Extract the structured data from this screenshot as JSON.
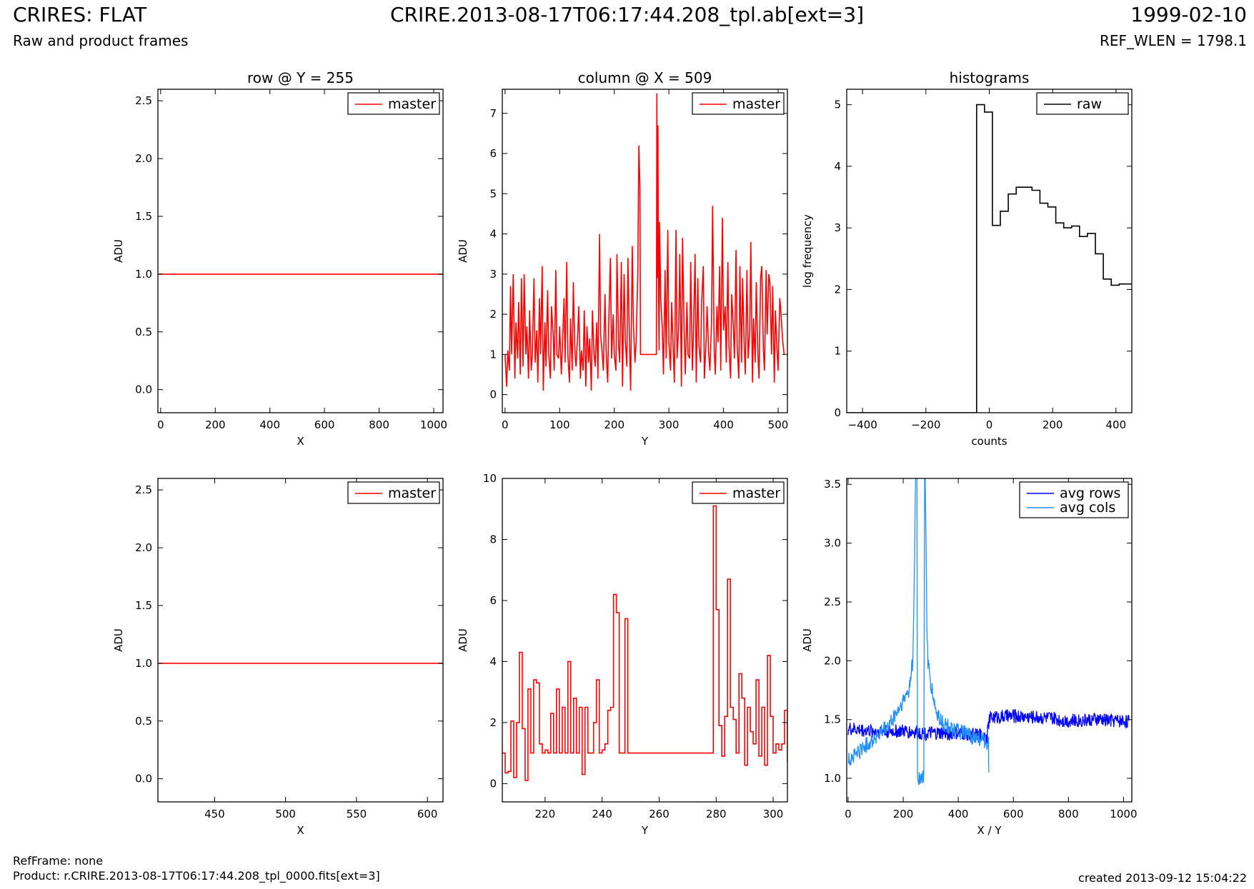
{
  "header": {
    "title_left": "CRIRES: FLAT",
    "title_center": "CRIRE.2013-08-17T06:17:44.208_tpl.ab[ext=3]",
    "title_right": "1999-02-10",
    "subtitle_left": "Raw and product frames",
    "subtitle_right": "REF_WLEN = 1798.1"
  },
  "footer": {
    "refframe": "RefFrame: none",
    "product": "Product: r.CRIRE.2013-08-17T06:17:44.208_tpl_0000.fits[ext=3]",
    "created": "created 2013-09-12 15:04:22"
  },
  "colors": {
    "master": "#ff0000",
    "raw": "#000000",
    "avg_rows": "#0000ff",
    "avg_cols": "#1e90ff"
  },
  "chart_data": [
    {
      "type": "line",
      "title": "row @ Y = 255",
      "xlabel": "X",
      "ylabel": "ADU",
      "xlim": [
        -10,
        1034
      ],
      "ylim": [
        -0.2,
        2.6
      ],
      "xticks": [
        0,
        200,
        400,
        600,
        800,
        1000
      ],
      "xtick_labels": [
        "0",
        "200",
        "400",
        "600",
        "800",
        "1000"
      ],
      "yticks": [
        0.0,
        0.5,
        1.0,
        1.5,
        2.0,
        2.5
      ],
      "ytick_labels": [
        "0.0",
        "0.5",
        "1.0",
        "1.5",
        "2.0",
        "2.5"
      ],
      "legend": "top-right",
      "series": [
        {
          "name": "master",
          "color": "#ff0000",
          "step": false,
          "x": [
            -10,
            1034
          ],
          "y": [
            1.0,
            1.0
          ]
        }
      ]
    },
    {
      "type": "line",
      "title": "column @ X = 509",
      "xlabel": "Y",
      "ylabel": "ADU",
      "xlim": [
        -5,
        517
      ],
      "ylim": [
        -0.45,
        7.6
      ],
      "xticks": [
        0,
        100,
        200,
        300,
        400,
        500
      ],
      "xtick_labels": [
        "0",
        "100",
        "200",
        "300",
        "400",
        "500"
      ],
      "yticks": [
        0,
        1,
        2,
        3,
        4,
        5,
        6,
        7
      ],
      "ytick_labels": [
        "0",
        "1",
        "2",
        "3",
        "4",
        "5",
        "6",
        "7"
      ],
      "legend": "top-right",
      "series": [
        {
          "name": "master",
          "color": "#ff0000",
          "step": false,
          "x": [
            0,
            3,
            5,
            8,
            10,
            12,
            15,
            18,
            20,
            23,
            25,
            28,
            30,
            33,
            35,
            38,
            40,
            43,
            45,
            48,
            50,
            53,
            55,
            58,
            60,
            63,
            65,
            68,
            70,
            73,
            75,
            78,
            80,
            83,
            85,
            88,
            90,
            93,
            95,
            98,
            100,
            103,
            105,
            108,
            110,
            113,
            115,
            118,
            120,
            123,
            125,
            128,
            130,
            133,
            135,
            138,
            140,
            143,
            145,
            148,
            150,
            153,
            155,
            158,
            160,
            163,
            165,
            168,
            170,
            173,
            175,
            178,
            180,
            183,
            185,
            188,
            190,
            193,
            195,
            198,
            200,
            203,
            205,
            208,
            210,
            213,
            215,
            218,
            220,
            223,
            225,
            228,
            230,
            233,
            235,
            238,
            240,
            243,
            245,
            247,
            248,
            250,
            252,
            255,
            260,
            265,
            270,
            275,
            277,
            278,
            279,
            280,
            281,
            282,
            283,
            285,
            288,
            290,
            293,
            295,
            298,
            300,
            303,
            305,
            308,
            310,
            313,
            315,
            318,
            320,
            323,
            325,
            328,
            330,
            333,
            335,
            338,
            340,
            343,
            345,
            348,
            350,
            353,
            355,
            358,
            360,
            363,
            365,
            368,
            370,
            373,
            375,
            378,
            380,
            383,
            385,
            388,
            390,
            393,
            395,
            398,
            400,
            403,
            405,
            408,
            410,
            413,
            415,
            418,
            420,
            423,
            425,
            428,
            430,
            433,
            435,
            438,
            440,
            443,
            445,
            448,
            450,
            453,
            455,
            458,
            460,
            463,
            465,
            468,
            470,
            473,
            475,
            478,
            480,
            483,
            485,
            488,
            490,
            493,
            495,
            498,
            500,
            503,
            505,
            508,
            511
          ],
          "y": [
            1.0,
            0.2,
            1.1,
            0.6,
            2.7,
            1.0,
            3.0,
            0.4,
            1.8,
            0.9,
            2.3,
            0.5,
            2.9,
            0.7,
            3.0,
            1.0,
            1.7,
            0.4,
            2.1,
            0.6,
            1.0,
            2.9,
            0.8,
            1.6,
            0.3,
            2.4,
            1.0,
            3.2,
            0.1,
            1.8,
            0.7,
            2.6,
            1.0,
            0.4,
            2.2,
            1.5,
            0.6,
            3.1,
            1.0,
            0.9,
            1.7,
            0.5,
            1.2,
            2.4,
            0.8,
            3.3,
            1.0,
            0.3,
            1.9,
            0.6,
            2.8,
            1.0,
            0.7,
            1.5,
            2.2,
            0.4,
            1.1,
            0.6,
            2.1,
            0.2,
            1.7,
            0.8,
            1.4,
            0.1,
            2.1,
            1.0,
            0.7,
            1.8,
            0.4,
            4.0,
            1.5,
            1.0,
            0.6,
            2.5,
            1.1,
            0.3,
            1.9,
            3.4,
            0.9,
            2.0,
            1.0,
            0.6,
            3.5,
            1.2,
            0.8,
            3.3,
            0.2,
            3.0,
            1.4,
            0.7,
            3.4,
            1.2,
            0.1,
            3.7,
            1.8,
            0.8,
            1.3,
            3.0,
            6.2,
            5.2,
            1.0,
            1.0,
            1.0,
            1.0,
            1.0,
            1.0,
            1.0,
            1.0,
            1.0,
            7.5,
            2.9,
            6.7,
            2.6,
            1.1,
            4.3,
            2.4,
            1.6,
            0.5,
            3.1,
            0.9,
            4.1,
            1.3,
            0.6,
            2.3,
            1.1,
            0.3,
            4.1,
            0.9,
            1.7,
            3.5,
            0.2,
            3.9,
            1.6,
            0.5,
            2.3,
            1.0,
            0.9,
            3.3,
            0.6,
            1.5,
            3.5,
            0.3,
            2.9,
            1.2,
            0.8,
            2.3,
            3.2,
            0.4,
            1.3,
            2.2,
            1.0,
            0.6,
            1.8,
            4.7,
            1.1,
            0.5,
            2.2,
            1.3,
            3.2,
            0.6,
            4.4,
            1.6,
            2.2,
            0.8,
            3.3,
            1.2,
            0.4,
            2.5,
            1.7,
            0.9,
            3.6,
            1.2,
            0.4,
            3.2,
            0.8,
            2.9,
            1.2,
            0.5,
            3.1,
            0.9,
            1.6,
            3.8,
            0.3,
            1.9,
            0.8,
            2.8,
            1.0,
            0.4,
            2.9,
            3.2,
            1.1,
            0.6,
            3.1,
            1.5,
            3.0,
            2.8,
            1.0,
            2.7,
            0.3,
            2.1,
            1.1,
            0.6,
            2.4,
            2.1,
            1.4,
            1.0
          ]
        }
      ]
    },
    {
      "type": "line",
      "title": "histograms",
      "xlabel": "counts",
      "ylabel": "log frequency",
      "xlim": [
        -450,
        450
      ],
      "ylim": [
        0,
        5.25
      ],
      "xticks": [
        -400,
        -200,
        0,
        200,
        400
      ],
      "xtick_labels": [
        "−400",
        "−200",
        "0",
        "200",
        "400"
      ],
      "yticks": [
        0,
        1,
        2,
        3,
        4,
        5
      ],
      "ytick_labels": [
        "0",
        "1",
        "2",
        "3",
        "4",
        "5"
      ],
      "legend": "top-right",
      "series": [
        {
          "name": "raw",
          "color": "#000000",
          "step": true,
          "x": [
            -450,
            -40,
            -40,
            -15,
            -15,
            10,
            10,
            35,
            35,
            60,
            60,
            85,
            85,
            110,
            110,
            135,
            135,
            160,
            160,
            185,
            185,
            210,
            210,
            235,
            235,
            260,
            260,
            285,
            285,
            310,
            310,
            335,
            335,
            360,
            360,
            385,
            385,
            410,
            410,
            450
          ],
          "y": [
            0,
            0,
            5.0,
            5.0,
            4.88,
            4.88,
            3.04,
            3.04,
            3.27,
            3.27,
            3.55,
            3.55,
            3.66,
            3.66,
            3.66,
            3.66,
            3.61,
            3.61,
            3.4,
            3.4,
            3.34,
            3.34,
            3.08,
            3.08,
            3.0,
            3.0,
            3.03,
            3.03,
            2.86,
            2.86,
            2.91,
            2.91,
            2.58,
            2.58,
            2.17,
            2.17,
            2.07,
            2.07,
            2.09,
            2.09
          ]
        }
      ]
    },
    {
      "type": "line",
      "title": "",
      "xlabel": "X",
      "ylabel": "ADU",
      "xlim": [
        410,
        611
      ],
      "ylim": [
        -0.2,
        2.6
      ],
      "xticks": [
        450,
        500,
        550,
        600
      ],
      "xtick_labels": [
        "450",
        "500",
        "550",
        "600"
      ],
      "yticks": [
        0.0,
        0.5,
        1.0,
        1.5,
        2.0,
        2.5
      ],
      "ytick_labels": [
        "0.0",
        "0.5",
        "1.0",
        "1.5",
        "2.0",
        "2.5"
      ],
      "legend": "top-right",
      "series": [
        {
          "name": "master",
          "color": "#ff0000",
          "step": false,
          "x": [
            410,
            611
          ],
          "y": [
            1.0,
            1.0
          ]
        }
      ]
    },
    {
      "type": "line",
      "title": "",
      "xlabel": "Y",
      "ylabel": "ADU",
      "xlim": [
        205,
        305
      ],
      "ylim": [
        -0.6,
        10.0
      ],
      "xticks": [
        220,
        240,
        260,
        280,
        300
      ],
      "xtick_labels": [
        "220",
        "240",
        "260",
        "280",
        "300"
      ],
      "yticks": [
        0,
        2,
        4,
        6,
        8,
        10
      ],
      "ytick_labels": [
        "0",
        "2",
        "4",
        "6",
        "8",
        "10"
      ],
      "legend": "top-right",
      "series": [
        {
          "name": "master",
          "color": "#ff0000",
          "step": true,
          "x": [
            205,
            206,
            207,
            208,
            209,
            210,
            211,
            212,
            213,
            214,
            215,
            216,
            217,
            218,
            219,
            220,
            221,
            222,
            223,
            224,
            225,
            226,
            227,
            228,
            229,
            230,
            231,
            232,
            233,
            234,
            235,
            236,
            237,
            238,
            239,
            240,
            241,
            242,
            243,
            244,
            245,
            246,
            247,
            248,
            249,
            278,
            279,
            280,
            281,
            282,
            283,
            284,
            285,
            286,
            287,
            288,
            289,
            290,
            291,
            292,
            293,
            294,
            295,
            296,
            297,
            298,
            299,
            300,
            301,
            302,
            303,
            304,
            305
          ],
          "y": [
            1.0,
            0.35,
            0.4,
            2.05,
            0.2,
            2.0,
            4.3,
            1.8,
            0.1,
            3.1,
            1.0,
            3.4,
            3.3,
            1.3,
            1.0,
            1.1,
            1.0,
            2.3,
            1.0,
            3.1,
            1.0,
            2.5,
            1.0,
            4.0,
            1.0,
            2.8,
            1.0,
            2.5,
            0.3,
            2.5,
            1.0,
            1.0,
            2.0,
            3.4,
            1.0,
            1.1,
            1.3,
            2.4,
            2.5,
            6.2,
            5.6,
            1.0,
            1.0,
            5.4,
            1.0,
            1.0,
            9.1,
            5.7,
            1.9,
            0.9,
            2.2,
            6.7,
            2.5,
            2.1,
            1.0,
            3.6,
            2.8,
            0.6,
            2.5,
            1.7,
            1.3,
            3.4,
            0.9,
            2.5,
            0.6,
            4.2,
            2.2,
            1.0,
            1.3,
            1.1,
            1.3,
            2.4,
            0.7
          ]
        }
      ]
    },
    {
      "type": "line",
      "title": "",
      "xlabel": "X / Y",
      "ylabel": "ADU",
      "xlim": [
        -5,
        1030
      ],
      "ylim": [
        0.8,
        3.55
      ],
      "xticks": [
        0,
        200,
        400,
        600,
        800,
        1000
      ],
      "xtick_labels": [
        "0",
        "200",
        "400",
        "600",
        "800",
        "1000"
      ],
      "yticks": [
        1.0,
        1.5,
        2.0,
        2.5,
        3.0,
        3.5
      ],
      "ytick_labels": [
        "1.0",
        "1.5",
        "2.0",
        "2.5",
        "3.0",
        "3.5"
      ],
      "legend": "top-right",
      "series": [
        {
          "name": "avg rows",
          "color": "#0000ff",
          "step": false,
          "noise": 0.06,
          "x": [
            0,
            100,
            200,
            300,
            400,
            505,
            512,
            520,
            600,
            700,
            800,
            900,
            1020
          ],
          "y": [
            1.42,
            1.4,
            1.4,
            1.38,
            1.38,
            1.36,
            1.5,
            1.52,
            1.53,
            1.52,
            1.49,
            1.5,
            1.49
          ]
        },
        {
          "name": "avg cols",
          "color": "#1e90ff",
          "step": false,
          "noise": 0.07,
          "x": [
            0,
            50,
            100,
            150,
            200,
            220,
            235,
            240,
            245,
            250,
            252,
            255,
            258,
            262,
            270,
            275,
            278,
            280,
            283,
            286,
            290,
            300,
            320,
            350,
            400,
            450,
            500,
            510,
            511
          ],
          "y": [
            1.15,
            1.25,
            1.35,
            1.45,
            1.65,
            1.75,
            2.0,
            2.6,
            3.6,
            3.6,
            1.0,
            1.0,
            1.0,
            1.0,
            1.0,
            1.0,
            3.6,
            3.6,
            3.0,
            2.3,
            2.0,
            1.8,
            1.55,
            1.45,
            1.4,
            1.35,
            1.32,
            1.3,
            1.05
          ]
        }
      ]
    }
  ]
}
